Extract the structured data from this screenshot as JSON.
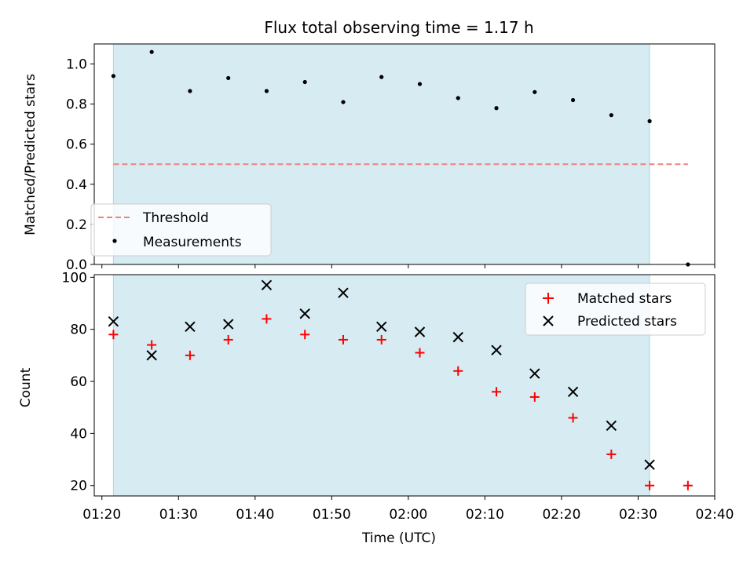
{
  "colors": {
    "shade": "#add8e6",
    "threshold": "#f08080",
    "measurement": "#000000",
    "matched": "#ff0000",
    "predicted": "#000000"
  },
  "chart_data": [
    {
      "type": "scatter",
      "title": "Flux total observing time = 1.17 h",
      "xlabel": "",
      "ylabel": "Matched/Predicted stars",
      "xlim": [
        "01:19",
        "02:40"
      ],
      "ylim": [
        0,
        1.1
      ],
      "yticks": [
        "0.0",
        "0.2",
        "0.4",
        "0.6",
        "0.8",
        "1.0"
      ],
      "shaded_region": [
        "01:21:30",
        "02:31:30"
      ],
      "legend_position": "lower-left",
      "threshold": {
        "name": "Threshold",
        "value": 0.5,
        "x_range": [
          "01:21:30",
          "02:36:30"
        ],
        "style": "dashed"
      },
      "series": [
        {
          "name": "Measurements",
          "x": [
            "01:21:30",
            "01:26:30",
            "01:31:30",
            "01:36:30",
            "01:41:30",
            "01:46:30",
            "01:51:30",
            "01:56:30",
            "02:01:30",
            "02:06:30",
            "02:11:30",
            "02:16:30",
            "02:21:30",
            "02:26:30",
            "02:31:30",
            "02:36:30"
          ],
          "y": [
            0.94,
            1.06,
            0.865,
            0.93,
            0.865,
            0.91,
            0.81,
            0.935,
            0.9,
            0.83,
            0.78,
            0.86,
            0.82,
            0.745,
            0.715,
            0.0
          ]
        }
      ]
    },
    {
      "type": "scatter",
      "xlabel": "Time (UTC)",
      "ylabel": "Count",
      "xlim": [
        "01:19",
        "02:40"
      ],
      "ylim": [
        16,
        101
      ],
      "xticks": [
        "01:20",
        "01:30",
        "01:40",
        "01:50",
        "02:00",
        "02:10",
        "02:20",
        "02:30",
        "02:40"
      ],
      "yticks": [
        "20",
        "40",
        "60",
        "80",
        "100"
      ],
      "shaded_region": [
        "01:21:30",
        "02:31:30"
      ],
      "legend_position": "upper-right",
      "series": [
        {
          "name": "Matched stars",
          "marker": "+",
          "x": [
            "01:21:30",
            "01:26:30",
            "01:31:30",
            "01:36:30",
            "01:41:30",
            "01:46:30",
            "01:51:30",
            "01:56:30",
            "02:01:30",
            "02:06:30",
            "02:11:30",
            "02:16:30",
            "02:21:30",
            "02:26:30",
            "02:31:30",
            "02:36:30"
          ],
          "y": [
            78,
            74,
            70,
            76,
            84,
            78,
            76,
            76,
            71,
            64,
            56,
            54,
            46,
            32,
            20,
            20
          ]
        },
        {
          "name": "Predicted stars",
          "marker": "x",
          "x": [
            "01:21:30",
            "01:26:30",
            "01:31:30",
            "01:36:30",
            "01:41:30",
            "01:46:30",
            "01:51:30",
            "01:56:30",
            "02:01:30",
            "02:06:30",
            "02:11:30",
            "02:16:30",
            "02:21:30",
            "02:26:30",
            "02:31:30"
          ],
          "y": [
            83,
            70,
            81,
            82,
            97,
            86,
            94,
            81,
            79,
            77,
            72,
            63,
            56,
            43,
            28
          ]
        }
      ]
    }
  ]
}
